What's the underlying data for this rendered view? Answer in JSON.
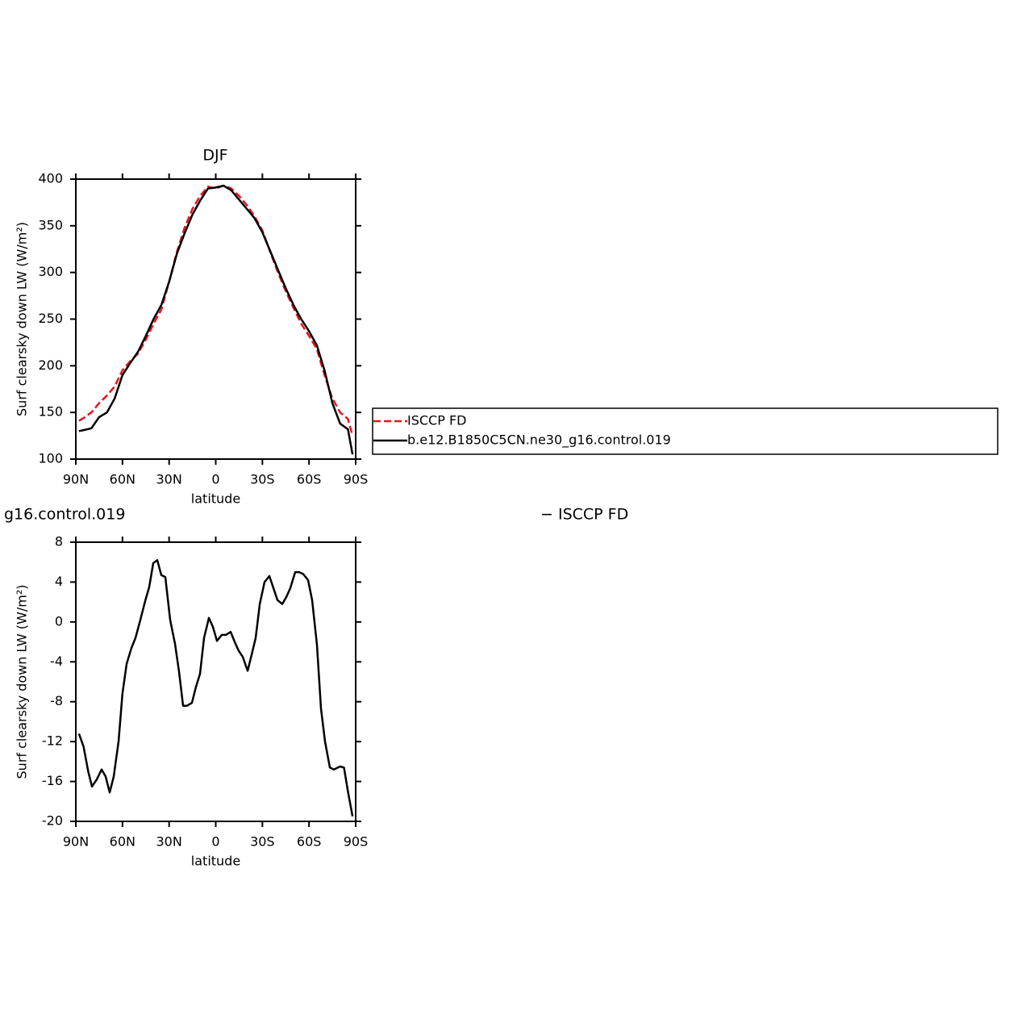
{
  "chart_data": [
    {
      "type": "line",
      "title": "DJF",
      "xlabel": "latitude",
      "ylabel": "Surf clearsky down LW (W/m²)",
      "x": [
        88,
        85,
        80,
        75,
        70,
        65,
        60,
        55,
        50,
        45,
        40,
        35,
        30,
        25,
        20,
        15,
        10,
        5,
        0,
        -5,
        -10,
        -15,
        -20,
        -25,
        -30,
        -35,
        -40,
        -45,
        -50,
        -55,
        -60,
        -65,
        -70,
        -75,
        -80,
        -85,
        -88
      ],
      "series": [
        {
          "name": "ISCCP FD",
          "color": "#e8141c",
          "line_style": "dashed",
          "values": [
            141,
            144,
            150,
            160,
            168,
            178,
            195,
            205,
            213,
            228,
            245,
            260,
            290,
            322,
            348,
            368,
            382,
            392,
            390,
            393,
            390,
            382,
            372,
            360,
            345,
            322,
            300,
            280,
            262,
            245,
            232,
            218,
            190,
            165,
            150,
            143,
            125
          ]
        },
        {
          "name": "b.e12.B1850C5CN.ne30_g16.control.019",
          "color": "#000000",
          "line_style": "solid",
          "values": [
            130,
            131,
            133,
            145,
            150,
            165,
            190,
            203,
            215,
            232,
            250,
            265,
            290,
            320,
            342,
            362,
            377,
            390,
            391,
            393,
            388,
            378,
            368,
            358,
            343,
            323,
            303,
            283,
            265,
            250,
            237,
            222,
            195,
            160,
            138,
            132,
            105
          ]
        }
      ],
      "xlim": [
        90,
        -90
      ],
      "xticks": [
        {
          "value": 90,
          "label": "90N"
        },
        {
          "value": 60,
          "label": "60N"
        },
        {
          "value": 30,
          "label": "30N"
        },
        0,
        {
          "value": -30,
          "label": "30S"
        },
        {
          "value": -60,
          "label": "60S"
        },
        {
          "value": -90,
          "label": "90S"
        }
      ],
      "ylim": [
        100,
        400
      ],
      "yticks": [
        100,
        150,
        200,
        250,
        300,
        350,
        400
      ],
      "legend": "right"
    },
    {
      "type": "line",
      "title_parts": [
        "g16.control.019",
        "− ISCCP FD"
      ],
      "xlabel": "latitude",
      "ylabel": "Surf clearsky down LW (W/m²)",
      "x": [
        88,
        85,
        82,
        79.6,
        76.5,
        73.4,
        70.8,
        68.2,
        65.6,
        62.5,
        60,
        57.3,
        54.2,
        51.6,
        48.5,
        45.4,
        42.8,
        40.2,
        37.6,
        35,
        32.4,
        29.3,
        26.2,
        23.6,
        21,
        18.4,
        15.3,
        12.7,
        10.1,
        7.5,
        4.4,
        1.8,
        -0.8,
        -3.9,
        -6.5,
        -9.6,
        -12.2,
        -14.8,
        -17.4,
        -20.5,
        -23.1,
        -25.7,
        -28.3,
        -31.4,
        -34.5,
        -37.1,
        -39.7,
        -42.8,
        -45.4,
        -48,
        -51.1,
        -53.7,
        -56.3,
        -59.4,
        -62,
        -65.1,
        -67.7,
        -70.3,
        -73.4,
        -76,
        -78.6,
        -80,
        -82.5,
        -85,
        -88
      ],
      "series": [
        {
          "color": "#000000",
          "line_style": "solid",
          "values": [
            -11.2,
            -12.5,
            -15,
            -16.5,
            -15.8,
            -14.8,
            -15.5,
            -17.1,
            -15.5,
            -12,
            -7.2,
            -4.2,
            -2.6,
            -1.6,
            0.2,
            2.1,
            3.5,
            5.9,
            6.2,
            4.7,
            4.5,
            0.2,
            -2.2,
            -5,
            -8.4,
            -8.4,
            -8.1,
            -6.5,
            -5.2,
            -1.6,
            0.4,
            -0.5,
            -1.9,
            -1.3,
            -1.3,
            -1,
            -2,
            -2.9,
            -3.5,
            -4.9,
            -3.3,
            -1.6,
            1.8,
            4,
            4.6,
            3.4,
            2.2,
            1.8,
            2.5,
            3.4,
            5,
            5,
            4.8,
            4.2,
            2.2,
            -2.3,
            -8.7,
            -12,
            -14.6,
            -14.8,
            -14.6,
            -14.5,
            -14.6,
            -17,
            -19.5
          ]
        }
      ],
      "xlim": [
        90,
        -90
      ],
      "xticks": [
        {
          "value": 90,
          "label": "90N"
        },
        {
          "value": 60,
          "label": "60N"
        },
        {
          "value": 30,
          "label": "30N"
        },
        0,
        {
          "value": -30,
          "label": "30S"
        },
        {
          "value": -60,
          "label": "60S"
        },
        {
          "value": -90,
          "label": "90S"
        }
      ],
      "ylim": [
        -20,
        8
      ],
      "yticks": [
        -20,
        -16,
        -12,
        -8,
        -4,
        0,
        4,
        8
      ]
    }
  ]
}
